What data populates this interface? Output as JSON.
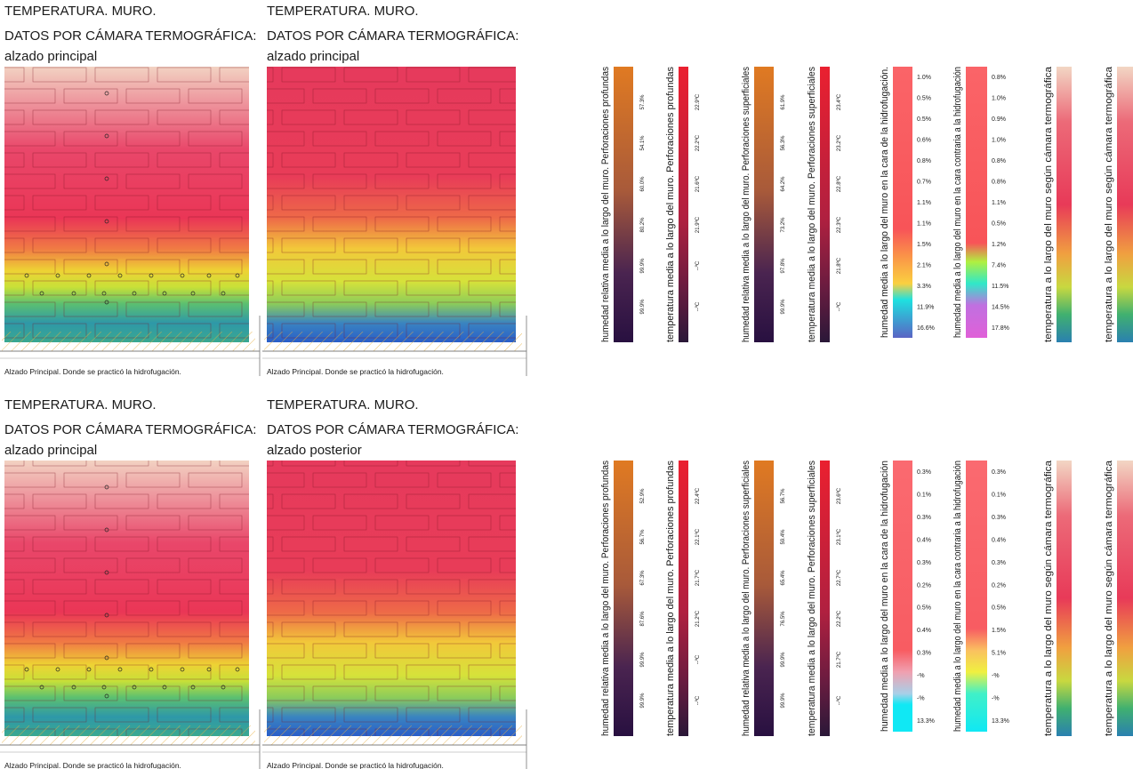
{
  "panels": [
    {
      "images": [
        {
          "title_line1": "TEMPERATURA. MURO.",
          "title_line2": "DATOS POR CÁMARA TERMOGRÁFICA:",
          "title_line3": "alzado principal",
          "caption": "Alzado Principal. Donde se practicó la hidrofugación."
        },
        {
          "title_line1": "TEMPERATURA. MURO.",
          "title_line2": "DATOS POR CÁMARA TERMOGRÁFICA:",
          "title_line3": "alzado principal",
          "caption": "Alzado Principal. Donde se practicó la hidrofugación."
        }
      ],
      "scales": [
        {
          "label": "humedad relativa media a lo largo del muro. Perforaciones profundas",
          "values": [
            "57.3%",
            "54.1%",
            "60.0%",
            "80.2%",
            "99.9%",
            "99.9%"
          ]
        },
        {
          "label": "temperatura media a lo largo del muro. Perforaciones profundas",
          "values": [
            "22.9ºC",
            "22.2ºC",
            "21.6ºC",
            "21.9ºC",
            "--ºC",
            "--ºC"
          ]
        },
        {
          "label": "humedad relativa media a lo largo del muro. Perforaciones superficiales",
          "values": [
            "61.9%",
            "56.3%",
            "64.2%",
            "73.2%",
            "97.8%",
            "99.9%"
          ]
        },
        {
          "label": "temperatura media a lo largo del muro. Perforaciones superficiales",
          "values": [
            "23.4ºC",
            "23.2ºC",
            "22.8ºC",
            "22.3ºC",
            "21.8ºC",
            "--ºC"
          ]
        },
        {
          "label": "humedad media a lo largo del muro en la cara de la hidrofugación.",
          "values": [
            "1.0%",
            "0.5%",
            "0.5%",
            "0.6%",
            "0.8%",
            "0.7%",
            "1.1%",
            "1.1%",
            "1.5%",
            "2.1%",
            "3.3%",
            "11.9%",
            "16.6%"
          ]
        },
        {
          "label": "humedad media a lo largo del muro en la cara contraria a la hidrofugación",
          "values": [
            "0.8%",
            "1.0%",
            "0.9%",
            "1.0%",
            "0.8%",
            "0.8%",
            "1.1%",
            "0.5%",
            "1.2%",
            "7.4%",
            "11.5%",
            "14.5%",
            "17.8%"
          ]
        },
        {
          "label": "temperatura a lo largo del muro según cámara termográfica"
        },
        {
          "label": "temperatura a lo largo del muro según cámara termográfica"
        }
      ]
    },
    {
      "images": [
        {
          "title_line1": "TEMPERATURA. MURO.",
          "title_line2": "DATOS POR CÁMARA TERMOGRÁFICA:",
          "title_line3": "alzado principal",
          "caption": "Alzado Principal. Donde se practicó la hidrofugación."
        },
        {
          "title_line1": "TEMPERATURA. MURO.",
          "title_line2": "DATOS POR CÁMARA TERMOGRÁFICA:",
          "title_line3": "alzado posterior",
          "caption": "Alzado Principal. Donde se practicó la hidrofugación."
        }
      ],
      "scales": [
        {
          "label": "humedad relativa media a lo largo del muro. Perforaciones profundas",
          "values": [
            "52.9%",
            "56.7%",
            "67.3%",
            "87.6%",
            "99.9%",
            "99.9%"
          ]
        },
        {
          "label": "temperatura media a lo largo del muro. Perforaciones profundas",
          "values": [
            "22.4ºC",
            "22.1ºC",
            "21.7ºC",
            "21.2ºC",
            "--ºC",
            "--ºC"
          ]
        },
        {
          "label": "humedad relativa media a lo largo del muro. Perforaciones superficiales",
          "values": [
            "56.7%",
            "59.4%",
            "65.4%",
            "76.5%",
            "99.9%",
            "99.9%"
          ]
        },
        {
          "label": "temperatura media a lo largo del muro. Perforaciones superficiales",
          "values": [
            "23.6ºC",
            "23.1ºC",
            "22.7ºC",
            "22.2ºC",
            "21.7ºC",
            "--ºC"
          ]
        },
        {
          "label": "humedad media a lo largo del muro en la cara de la hidrofugación",
          "values": [
            "0.3%",
            "0.1%",
            "0.3%",
            "0.4%",
            "0.3%",
            "0.2%",
            "0.5%",
            "0.4%",
            "0.3%",
            "-%",
            "-%",
            "13.3%"
          ]
        },
        {
          "label": "humedad media a lo largo del muro en la cara contraria a la hidrofugación",
          "values": [
            "0.3%",
            "0.1%",
            "0.3%",
            "0.4%",
            "0.3%",
            "0.2%",
            "0.5%",
            "1.5%",
            "5.1%",
            "-%",
            "-%",
            "13.3%"
          ]
        },
        {
          "label": "temperatura a lo largo del muro según cámara termográfica"
        },
        {
          "label": "temperatura a lo largo del muro según cámara termográfica"
        }
      ]
    }
  ]
}
